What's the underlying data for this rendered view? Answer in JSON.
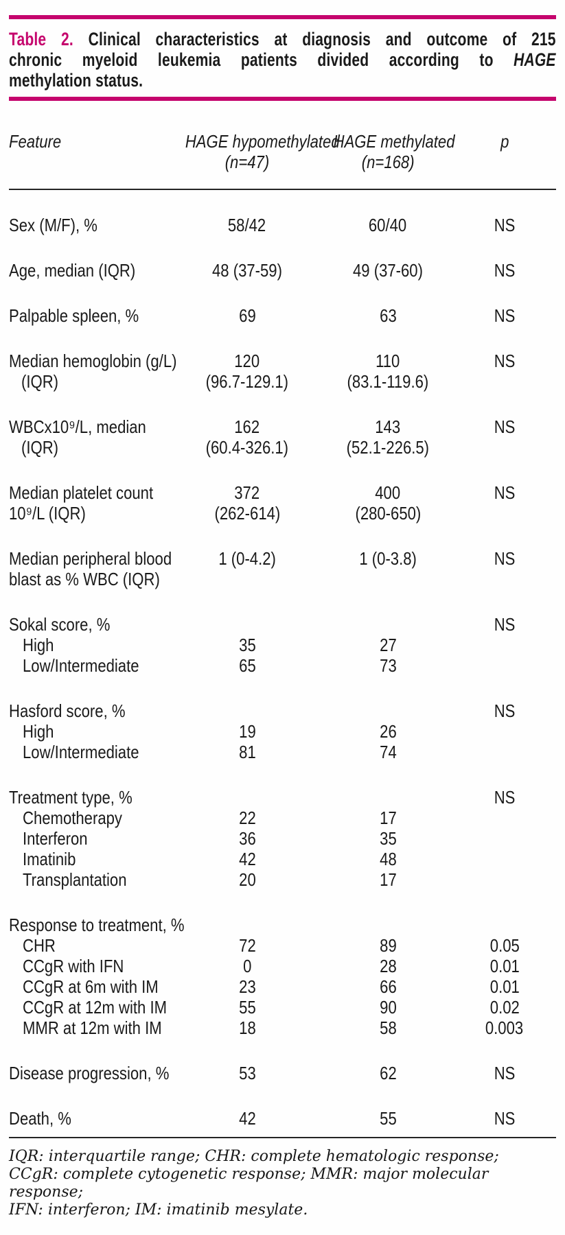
{
  "colors": {
    "accent": "#C5056D",
    "text": "#1A1A1A",
    "rule": "#242424"
  },
  "title": {
    "label": "Table 2.",
    "line1": "Clinical characteristics at diagnosis and outcome of 215",
    "line2_pre": "chronic myeloid leukemia patients divided according to",
    "line2_italic": "HAGE",
    "line3": "methylation status."
  },
  "header": {
    "feature": "Feature",
    "col1_line1": "HAGE hypomethylated",
    "col1_line2": "(n=47)",
    "col2_line1": "HAGE methylated",
    "col2_line2": "(n=168)",
    "p": "p"
  },
  "rows": [
    {
      "type": "single",
      "label": "Sex (M/F), %",
      "c1": "58/42",
      "c2": "60/40",
      "p": "NS"
    },
    {
      "type": "single",
      "label": "Age, median  (IQR)",
      "c1": "48 (37-59)",
      "c2": "49 (37-60)",
      "p": "NS"
    },
    {
      "type": "single",
      "label": "Palpable spleen, %",
      "c1": "69",
      "c2": "63",
      "p": "NS"
    },
    {
      "type": "double",
      "label": "Median hemoglobin (g/L)",
      "label2": "(IQR)",
      "label2_indent": true,
      "c1": "120",
      "c1b": "(96.7-129.1)",
      "c2": "110",
      "c2b": "(83.1-119.6)",
      "p": "NS"
    },
    {
      "type": "double",
      "label": "WBCx10⁹/L, median",
      "label2": "(IQR)",
      "label2_indent": true,
      "c1": "162",
      "c1b": "(60.4-326.1)",
      "c2": "143",
      "c2b": "(52.1-226.5)",
      "p": "NS"
    },
    {
      "type": "double",
      "label": "Median platelet count",
      "label2": "10⁹/L (IQR)",
      "label2_indent": false,
      "c1": "372",
      "c1b": "(262-614)",
      "c2": "400",
      "c2b": "(280-650)",
      "p": "NS"
    },
    {
      "type": "double",
      "label": "Median peripheral blood",
      "label2": "blast as % WBC (IQR)",
      "label2_indent": false,
      "c1": "1 (0-4.2)",
      "c2": "1 (0-3.8)",
      "p": "NS"
    },
    {
      "type": "group",
      "label": "Sokal score, %",
      "p": "NS"
    },
    {
      "type": "sub",
      "label": "High",
      "c1": "35",
      "c2": "27"
    },
    {
      "type": "sub",
      "label": "Low/Intermediate",
      "c1": "65",
      "c2": "73"
    },
    {
      "type": "group",
      "label": "Hasford score, %",
      "p": "NS"
    },
    {
      "type": "sub",
      "label": "High",
      "c1": "19",
      "c2": "26"
    },
    {
      "type": "sub",
      "label": "Low/Intermediate",
      "c1": "81",
      "c2": "74"
    },
    {
      "type": "group",
      "label": "Treatment type, %",
      "p": "NS"
    },
    {
      "type": "sub",
      "label": "Chemotherapy",
      "c1": "22",
      "c2": "17"
    },
    {
      "type": "sub",
      "label": "Interferon",
      "c1": "36",
      "c2": "35"
    },
    {
      "type": "sub",
      "label": "Imatinib",
      "c1": "42",
      "c2": "48"
    },
    {
      "type": "sub",
      "label": "Transplantation",
      "c1": "20",
      "c2": "17"
    },
    {
      "type": "group",
      "label": "Response to treatment, %",
      "p": ""
    },
    {
      "type": "sub",
      "label": "CHR",
      "c1": "72",
      "c2": "89",
      "p": "0.05"
    },
    {
      "type": "sub",
      "label": "CCgR with IFN",
      "c1": "0",
      "c2": "28",
      "p": "0.01"
    },
    {
      "type": "sub",
      "label": "CCgR at 6m with IM",
      "c1": "23",
      "c2": "66",
      "p": "0.01"
    },
    {
      "type": "sub",
      "label": "CCgR at 12m with IM",
      "c1": "55",
      "c2": "90",
      "p": "0.02"
    },
    {
      "type": "sub",
      "label": "MMR at 12m with IM",
      "c1": "18",
      "c2": "58",
      "p": "0.003"
    },
    {
      "type": "single",
      "label": "Disease progression, %",
      "c1": "53",
      "c2": "62",
      "p": "NS"
    },
    {
      "type": "single",
      "label": "Death, %",
      "c1": "42",
      "c2": "55",
      "p": "NS"
    }
  ],
  "footnote": {
    "lines": [
      "IQR: interquartile range; CHR: complete hematologic response;",
      "CCgR: complete cytogenetic response; MMR: major molecular response;",
      "IFN: interferon; IM: imatinib mesylate."
    ]
  }
}
